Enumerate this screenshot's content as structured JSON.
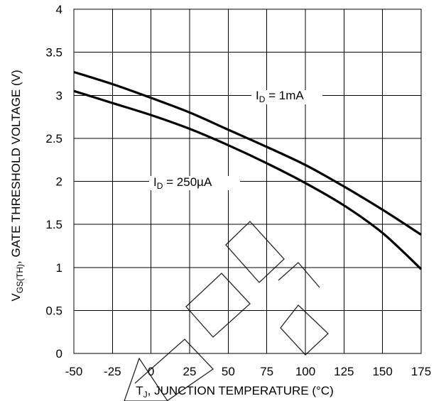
{
  "chart_data": {
    "type": "line",
    "title": "",
    "xlabel_main": "T",
    "xlabel_sub": "J",
    "xlabel_rest": ", JUNCTION TEMPERATURE (°C)",
    "ylabel_main": "V",
    "ylabel_sub": "GS(TH)",
    "ylabel_rest": ",  GATE THRESHOLD VOLTAGE (V)",
    "xlim": [
      -50,
      175
    ],
    "ylim": [
      0,
      4
    ],
    "xticks": [
      -50,
      -25,
      0,
      25,
      50,
      75,
      100,
      125,
      150,
      175
    ],
    "xtick_labels": [
      "-50",
      "-25",
      "0",
      "25",
      "50",
      "75",
      "100",
      "125",
      "150",
      "175"
    ],
    "yticks": [
      0,
      0.5,
      1,
      1.5,
      2,
      2.5,
      3,
      3.5,
      4
    ],
    "ytick_labels": [
      "0",
      "0.5",
      "1",
      "1.5",
      "2",
      "2.5",
      "3",
      "3.5",
      "4"
    ],
    "grid": true,
    "series": [
      {
        "name": "ID = 1mA",
        "label_main": "I",
        "label_sub": "D",
        "label_rest": " = 1mA",
        "x": [
          -50,
          -25,
          0,
          25,
          50,
          75,
          100,
          125,
          150,
          175
        ],
        "y": [
          3.27,
          3.13,
          2.97,
          2.8,
          2.6,
          2.4,
          2.19,
          1.94,
          1.67,
          1.38
        ]
      },
      {
        "name": "ID = 250µA",
        "label_main": "I",
        "label_sub": "D",
        "label_rest": " = 250µA",
        "x": [
          -50,
          -25,
          0,
          25,
          50,
          75,
          100,
          125,
          150,
          175
        ],
        "y": [
          3.05,
          2.91,
          2.77,
          2.61,
          2.42,
          2.21,
          1.98,
          1.72,
          1.4,
          0.98
        ]
      }
    ],
    "watermark": "DISCONTINUED-style outline lettering (partially visible)"
  }
}
